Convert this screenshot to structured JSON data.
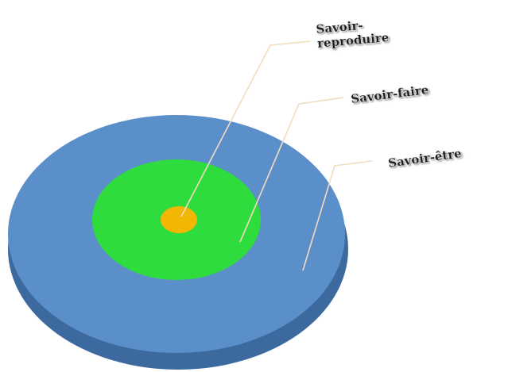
{
  "diagram": {
    "rings": [
      {
        "name": "outer-ring",
        "label": "Savoir-être",
        "color": "#5b8fca",
        "side_color": "#3d6a9e"
      },
      {
        "name": "middle-ring",
        "label": "Savoir-faire",
        "color": "#2fdc3e"
      },
      {
        "name": "inner-ring",
        "label_lines": [
          "Savoir-",
          "reproduire"
        ],
        "color": "#f2b705"
      }
    ],
    "leader_line_color": "#f3dcc0"
  }
}
